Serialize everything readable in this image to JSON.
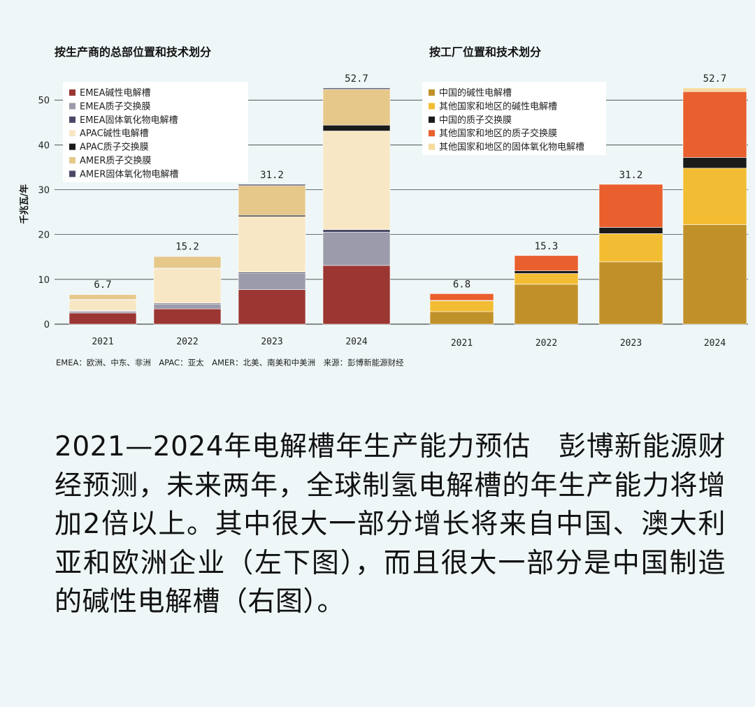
{
  "footnote": "EMEA：欧洲、中东、非洲　APAC：亚太　AMER：北美、南美和中美洲　来源：彭博新能源财经",
  "y_axis_label": "千兆瓦/年",
  "caption": "2021—2024年电解槽年生产能力预估　彭博新能源财经预测，未来两年，全球制氢电解槽的年生产能力将增加2倍以上。其中很大一部分增长将来自中国、澳大利亚和欧洲企业（左下图），而且很大一部分是中国制造的碱性电解槽（右图）。",
  "chart_data": [
    {
      "type": "bar",
      "stacked": true,
      "title": "按生产商的总部位置和技术划分",
      "ylabel": "千兆瓦/年",
      "ylim": [
        0,
        53
      ],
      "yticks": [
        0,
        10,
        20,
        30,
        40,
        50
      ],
      "grid": true,
      "legend_position": "top-left",
      "categories": [
        "2021",
        "2022",
        "2023",
        "2024"
      ],
      "totals": [
        "6.7",
        "15.2",
        "31.2",
        "52.7"
      ],
      "series": [
        {
          "name": "EMEA碱性电解槽",
          "color": "#9b3632",
          "values": [
            2.5,
            3.4,
            7.7,
            13.1
          ]
        },
        {
          "name": "EMEA质子交换膜",
          "color": "#9c9bab",
          "values": [
            0.4,
            1.1,
            3.6,
            7.4
          ]
        },
        {
          "name": "EMEA固体氧化物电解槽",
          "color": "#4a4a66",
          "values": [
            0.1,
            0.2,
            0.3,
            0.6
          ]
        },
        {
          "name": "APAC碱性电解槽",
          "color": "#f8e7c4",
          "values": [
            2.4,
            7.7,
            12.4,
            22.0
          ]
        },
        {
          "name": "APAC质子交换膜",
          "color": "#1a1a1a",
          "values": [
            0.1,
            0.1,
            0.3,
            1.3
          ]
        },
        {
          "name": "AMER质子交换膜",
          "color": "#e5c88a",
          "values": [
            1.1,
            2.6,
            6.6,
            8.0
          ]
        },
        {
          "name": "AMER固体氧化物电解槽",
          "color": "#4a4a66",
          "values": [
            0.1,
            0.1,
            0.3,
            0.3
          ]
        }
      ]
    },
    {
      "type": "bar",
      "stacked": true,
      "title": "按工厂位置和技术划分",
      "ylim": [
        0,
        53
      ],
      "yticks": [
        0,
        10,
        20,
        30,
        40,
        50
      ],
      "grid": true,
      "legend_position": "top-left",
      "categories": [
        "2021",
        "2022",
        "2023",
        "2024"
      ],
      "totals": [
        "6.8",
        "15.3",
        "31.2",
        "52.7"
      ],
      "series": [
        {
          "name": "中国的碱性电解槽",
          "color": "#c19129",
          "values": [
            2.8,
            8.9,
            13.9,
            22.2
          ]
        },
        {
          "name": "其他国家和地区的碱性电解槽",
          "color": "#f3bd33",
          "values": [
            2.4,
            2.4,
            6.3,
            12.6
          ]
        },
        {
          "name": "中国的质子交换膜",
          "color": "#1a1a1a",
          "values": [
            0.1,
            0.6,
            1.4,
            2.4
          ]
        },
        {
          "name": "其他国家和地区的质子交换膜",
          "color": "#e95f2e",
          "values": [
            1.5,
            3.4,
            9.6,
            14.7
          ]
        },
        {
          "name": "其他国家和地区的固体氧化物电解槽",
          "color": "#f4dc9c",
          "values": [
            0.0,
            0.0,
            0.0,
            0.8
          ]
        }
      ]
    }
  ]
}
